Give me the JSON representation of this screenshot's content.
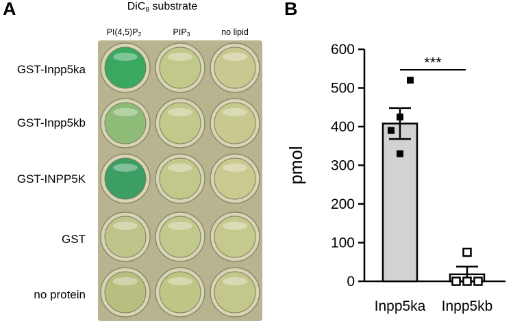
{
  "panel_a": {
    "letter": "A",
    "title_main": "DiC",
    "title_sub": "8",
    "title_tail": " substrate",
    "columns": [
      {
        "main": "PI(4,5)P",
        "sub": "2"
      },
      {
        "main": "PIP",
        "sub": "3"
      },
      {
        "main": "no lipid",
        "sub": ""
      }
    ],
    "rows": [
      "GST-Inpp5ka",
      "GST-Inpp5kb",
      "GST-INPP5K",
      "GST",
      "no protein"
    ],
    "well_colors": [
      [
        "#3aa860",
        "#c2c88a",
        "#c8c990"
      ],
      [
        "#8fbb78",
        "#c3c98b",
        "#c7c98e"
      ],
      [
        "#3c9e62",
        "#c2c78a",
        "#c8ca90"
      ],
      [
        "#c0c48a",
        "#c2c78b",
        "#c5c98d"
      ],
      [
        "#b7be80",
        "#bec585",
        "#c3c78a"
      ]
    ],
    "plate_color": "#b8b48f"
  },
  "chart_data": {
    "type": "bar",
    "panel_letter": "B",
    "categories": [
      "Inpp5ka",
      "Inpp5kb"
    ],
    "values": [
      408,
      18
    ],
    "sem": [
      40,
      20
    ],
    "points": [
      [
        520,
        425,
        390,
        330
      ],
      [
        75,
        0,
        0,
        0
      ]
    ],
    "fills": [
      "#d2d2d2",
      "#ffffff"
    ],
    "marker_styles": [
      "filled-square",
      "open-square"
    ],
    "ylabel": "pmol",
    "xlabel": "",
    "ylim": [
      0,
      600
    ],
    "yticks": [
      0,
      100,
      200,
      300,
      400,
      500,
      600
    ],
    "significance": "***",
    "grid": false
  }
}
